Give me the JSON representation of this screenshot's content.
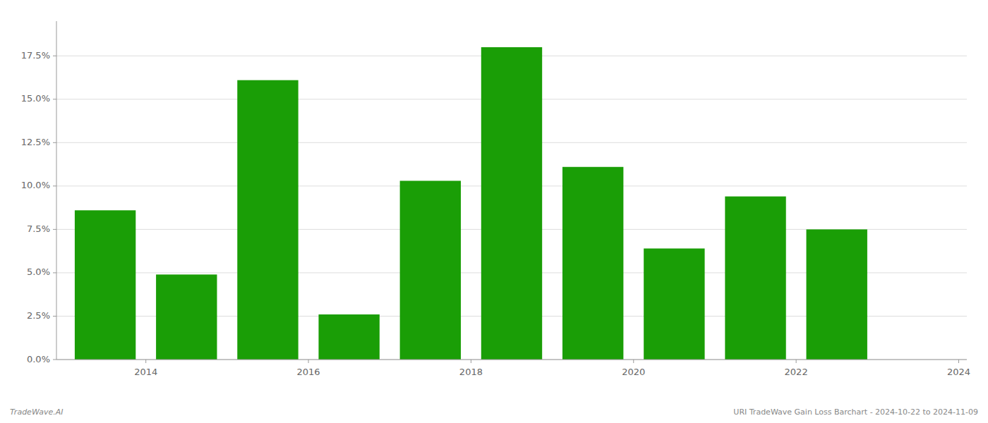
{
  "chart_data": {
    "type": "bar",
    "x": [
      2014,
      2015,
      2016,
      2017,
      2018,
      2019,
      2020,
      2021,
      2022,
      2023
    ],
    "values": [
      0.086,
      0.049,
      0.161,
      0.026,
      0.103,
      0.18,
      0.111,
      0.064,
      0.094,
      0.075
    ],
    "color": "#1a9e06",
    "xlim": [
      2013.4,
      2024.6
    ],
    "xticks": [
      {
        "value": 2014.5,
        "label": "2014"
      },
      {
        "value": 2016.5,
        "label": "2016"
      },
      {
        "value": 2018.5,
        "label": "2018"
      },
      {
        "value": 2020.5,
        "label": "2020"
      },
      {
        "value": 2022.5,
        "label": "2022"
      },
      {
        "value": 2024.5,
        "label": "2024"
      }
    ],
    "ylim": [
      0,
      0.195
    ],
    "yticks": [
      {
        "value": 0.0,
        "label": "0.0%"
      },
      {
        "value": 0.025,
        "label": "2.5%"
      },
      {
        "value": 0.05,
        "label": "5.0%"
      },
      {
        "value": 0.075,
        "label": "7.5%"
      },
      {
        "value": 0.1,
        "label": "10.0%"
      },
      {
        "value": 0.125,
        "label": "12.5%"
      },
      {
        "value": 0.15,
        "label": "15.0%"
      },
      {
        "value": 0.175,
        "label": "17.5%"
      }
    ],
    "grid": true,
    "annotations": [
      "TradeWave.AI",
      "URI TradeWave Gain Loss Barchart - 2024-10-22 to 2024-11-09"
    ]
  }
}
